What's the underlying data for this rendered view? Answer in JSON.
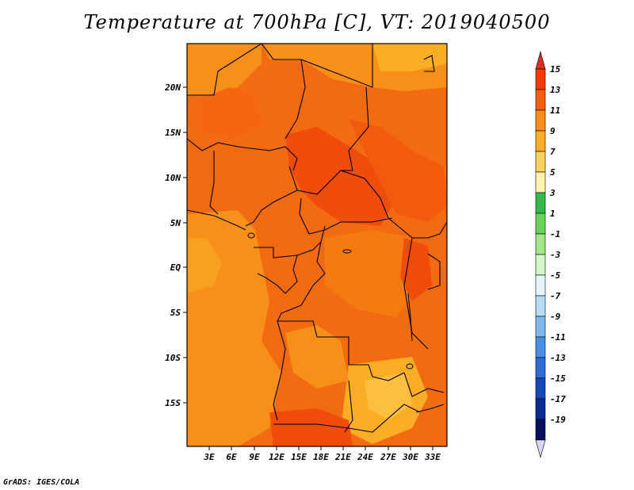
{
  "title": "Temperature at 700hPa [C], VT: 2019040500",
  "footer": "GrADS: IGES/COLA",
  "map": {
    "lat_ticks": [
      "20N",
      "15N",
      "10N",
      "5N",
      "EQ",
      "5S",
      "10S",
      "15S"
    ],
    "lon_ticks": [
      "3E",
      "6E",
      "9E",
      "12E",
      "15E",
      "18E",
      "21E",
      "24E",
      "27E",
      "30E",
      "33E"
    ]
  },
  "colorbar": {
    "labels": [
      "15",
      "13",
      "11",
      "9",
      "7",
      "5",
      "3",
      "1",
      "-1",
      "-3",
      "-5",
      "-7",
      "-9",
      "-11",
      "-13",
      "-15",
      "-17",
      "-19"
    ],
    "colors": [
      "#d7301f",
      "#f03b08",
      "#f45f0f",
      "#f78d17",
      "#fbae25",
      "#fdd160",
      "#fff2b0",
      "#34b84a",
      "#68d35c",
      "#a3e688",
      "#d4f5c8",
      "#e6f4fb",
      "#b7dcf6",
      "#7fb7ee",
      "#4b8fe3",
      "#2d6bd5",
      "#1549b9",
      "#0b2a8f",
      "#08105e",
      "#d9d6f2"
    ]
  }
}
